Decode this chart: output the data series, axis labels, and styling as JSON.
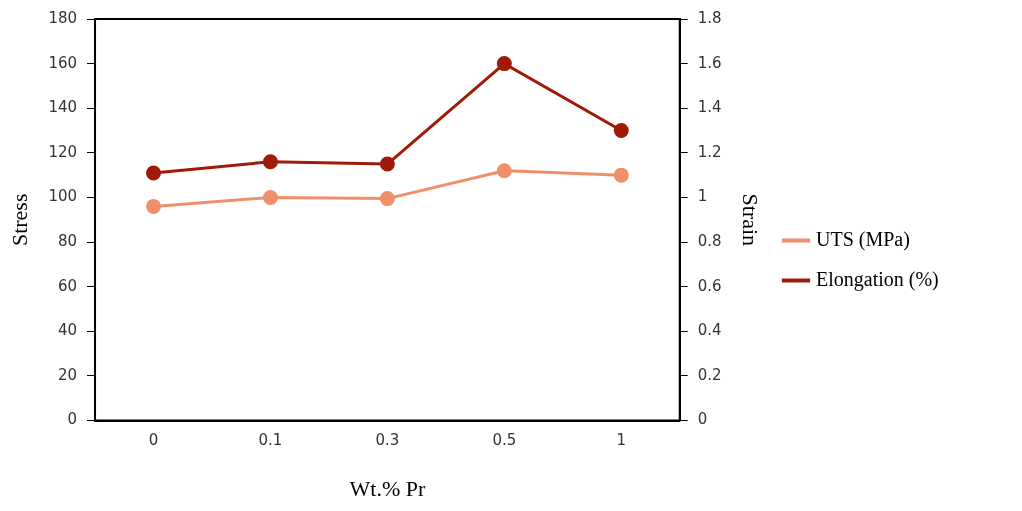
{
  "chart_data": {
    "type": "line",
    "xlabel": "Wt.% Pr",
    "ylabel": "Stress",
    "y2label": "Strain",
    "categories": [
      "0",
      "0.1",
      "0.3",
      "0.5",
      "1"
    ],
    "series": [
      {
        "name": "UTS (MPa)",
        "color": "#f0906a",
        "values": [
          96,
          100,
          99.5,
          112,
          110
        ]
      },
      {
        "name": "Elongation (%)",
        "color": "#a01a08",
        "values": [
          1.11,
          1.16,
          1.15,
          1.6,
          1.3
        ],
        "axis": "y2"
      }
    ],
    "ylim": [
      0,
      180
    ],
    "yticks": [
      0,
      20,
      40,
      60,
      80,
      100,
      120,
      140,
      160,
      180
    ],
    "y2lim": [
      0,
      1.8
    ],
    "y2ticks": [
      0,
      0.2,
      0.4,
      0.6,
      0.8,
      1,
      1.2,
      1.4,
      1.6,
      1.8
    ],
    "grid": false,
    "legend": "right",
    "marker": "circle",
    "line_style": "solid"
  }
}
